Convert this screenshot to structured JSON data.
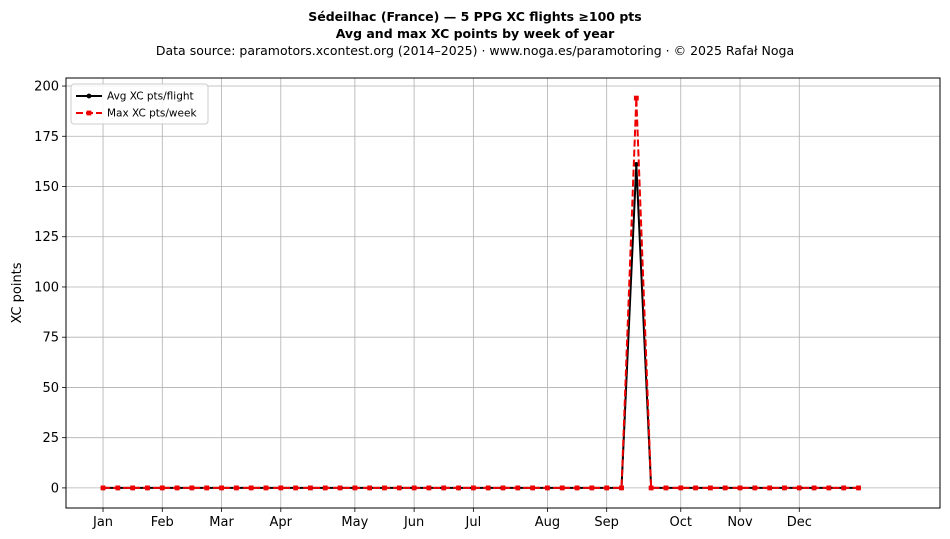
{
  "chart_data": {
    "type": "line",
    "title": "Sédeilhac (France)  —  5 PPG XC flights ≥100 pts",
    "subtitle": "Avg and max XC points by week of year",
    "source": "Data source: paramotors.xcontest.org (2014–2025)  ·  www.noga.es/paramotoring  ·  © 2025 Rafał Noga",
    "xlabel": "",
    "ylabel": "XC points",
    "xlim": [
      -2.5,
      56.5
    ],
    "ylim": [
      -10,
      204
    ],
    "yticks": [
      0,
      25,
      50,
      75,
      100,
      125,
      150,
      175,
      200
    ],
    "xticks": [
      {
        "week": 0,
        "label": "Jan"
      },
      {
        "week": 4,
        "label": "Feb"
      },
      {
        "week": 8,
        "label": "Mar"
      },
      {
        "week": 12,
        "label": "Apr"
      },
      {
        "week": 17,
        "label": "May"
      },
      {
        "week": 21,
        "label": "Jun"
      },
      {
        "week": 25,
        "label": "Jul"
      },
      {
        "week": 30,
        "label": "Aug"
      },
      {
        "week": 34,
        "label": "Sep"
      },
      {
        "week": 39,
        "label": "Oct"
      },
      {
        "week": 43,
        "label": "Nov"
      },
      {
        "week": 47,
        "label": "Dec"
      }
    ],
    "grid": true,
    "legend_position": "upper-left",
    "x": [
      0,
      1,
      2,
      3,
      4,
      5,
      6,
      7,
      8,
      9,
      10,
      11,
      12,
      13,
      14,
      15,
      16,
      17,
      18,
      19,
      20,
      21,
      22,
      23,
      24,
      25,
      26,
      27,
      28,
      29,
      30,
      31,
      32,
      33,
      34,
      35,
      36,
      37,
      38,
      39,
      40,
      41,
      42,
      43,
      44,
      45,
      46,
      47,
      48,
      49,
      50,
      51
    ],
    "series": [
      {
        "name": "Avg XC pts/flight",
        "color": "#000000",
        "style": "solid",
        "marker": "circle",
        "values": [
          0,
          0,
          0,
          0,
          0,
          0,
          0,
          0,
          0,
          0,
          0,
          0,
          0,
          0,
          0,
          0,
          0,
          0,
          0,
          0,
          0,
          0,
          0,
          0,
          0,
          0,
          0,
          0,
          0,
          0,
          0,
          0,
          0,
          0,
          0,
          0,
          161,
          0,
          0,
          0,
          0,
          0,
          0,
          0,
          0,
          0,
          0,
          0,
          0,
          0,
          0,
          0
        ]
      },
      {
        "name": "Max XC pts/week",
        "color": "#ee0000",
        "style": "dashed",
        "marker": "square",
        "values": [
          0,
          0,
          0,
          0,
          0,
          0,
          0,
          0,
          0,
          0,
          0,
          0,
          0,
          0,
          0,
          0,
          0,
          0,
          0,
          0,
          0,
          0,
          0,
          0,
          0,
          0,
          0,
          0,
          0,
          0,
          0,
          0,
          0,
          0,
          0,
          0,
          194,
          0,
          0,
          0,
          0,
          0,
          0,
          0,
          0,
          0,
          0,
          0,
          0,
          0,
          0,
          0
        ]
      }
    ]
  }
}
